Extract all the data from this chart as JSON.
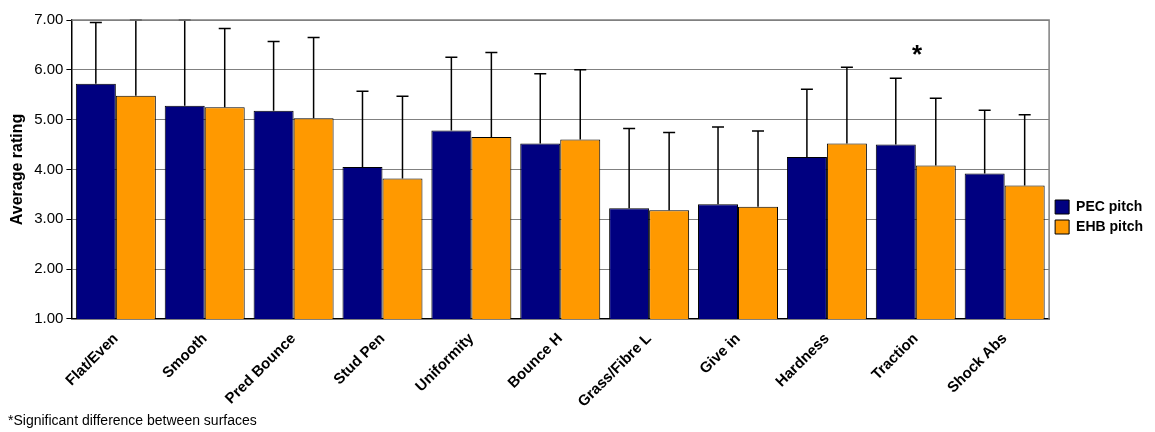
{
  "chart_data": {
    "type": "bar",
    "ylabel": "Average rating",
    "categories": [
      "Flat/Even",
      "Smooth",
      "Pred Bounce",
      "Stud Pen",
      "Uniformity",
      "Bounce H",
      "Grass/Fibre L",
      "Give in",
      "Hardness",
      "Traction",
      "Shock Abs"
    ],
    "series": [
      {
        "name": "PEC pitch",
        "color": "#000080",
        "values": [
          5.72,
          5.28,
          5.18,
          4.05,
          4.78,
          4.52,
          3.22,
          3.3,
          4.25,
          4.5,
          3.92
        ],
        "errors": [
          [
            5.72,
            6.95
          ],
          [
            5.28,
            7.0
          ],
          [
            5.18,
            6.57
          ],
          [
            4.05,
            5.57
          ],
          [
            4.78,
            6.25
          ],
          [
            4.52,
            5.92
          ],
          [
            3.22,
            4.82
          ],
          [
            3.3,
            4.85
          ],
          [
            4.25,
            5.61
          ],
          [
            4.5,
            5.83
          ],
          [
            3.92,
            5.19
          ]
        ]
      },
      {
        "name": "EHB pitch",
        "color": "#ff9900",
        "values": [
          5.48,
          5.25,
          5.03,
          3.82,
          4.65,
          4.6,
          3.18,
          3.25,
          4.52,
          4.08,
          3.68
        ],
        "errors": [
          [
            5.48,
            7.0
          ],
          [
            5.25,
            6.83
          ],
          [
            5.03,
            6.65
          ],
          [
            3.82,
            5.47
          ],
          [
            4.65,
            6.35
          ],
          [
            4.6,
            6.0
          ],
          [
            3.18,
            4.74
          ],
          [
            3.25,
            4.77
          ],
          [
            4.52,
            6.05
          ],
          [
            4.08,
            5.43
          ],
          [
            3.68,
            5.1
          ]
        ]
      }
    ],
    "ylim": [
      1,
      7
    ],
    "yticks": [
      {
        "value": 1,
        "label": "1.00"
      },
      {
        "value": 2,
        "label": "2.00"
      },
      {
        "value": 3,
        "label": "3.00"
      },
      {
        "value": 4,
        "label": "4.00"
      },
      {
        "value": 5,
        "label": "5.00"
      },
      {
        "value": 6,
        "label": "6.00"
      },
      {
        "value": 7,
        "label": "7.00"
      }
    ],
    "grid": "y",
    "legend": "right",
    "annotations": [
      "*",
      "*Significant difference between surfaces"
    ]
  }
}
